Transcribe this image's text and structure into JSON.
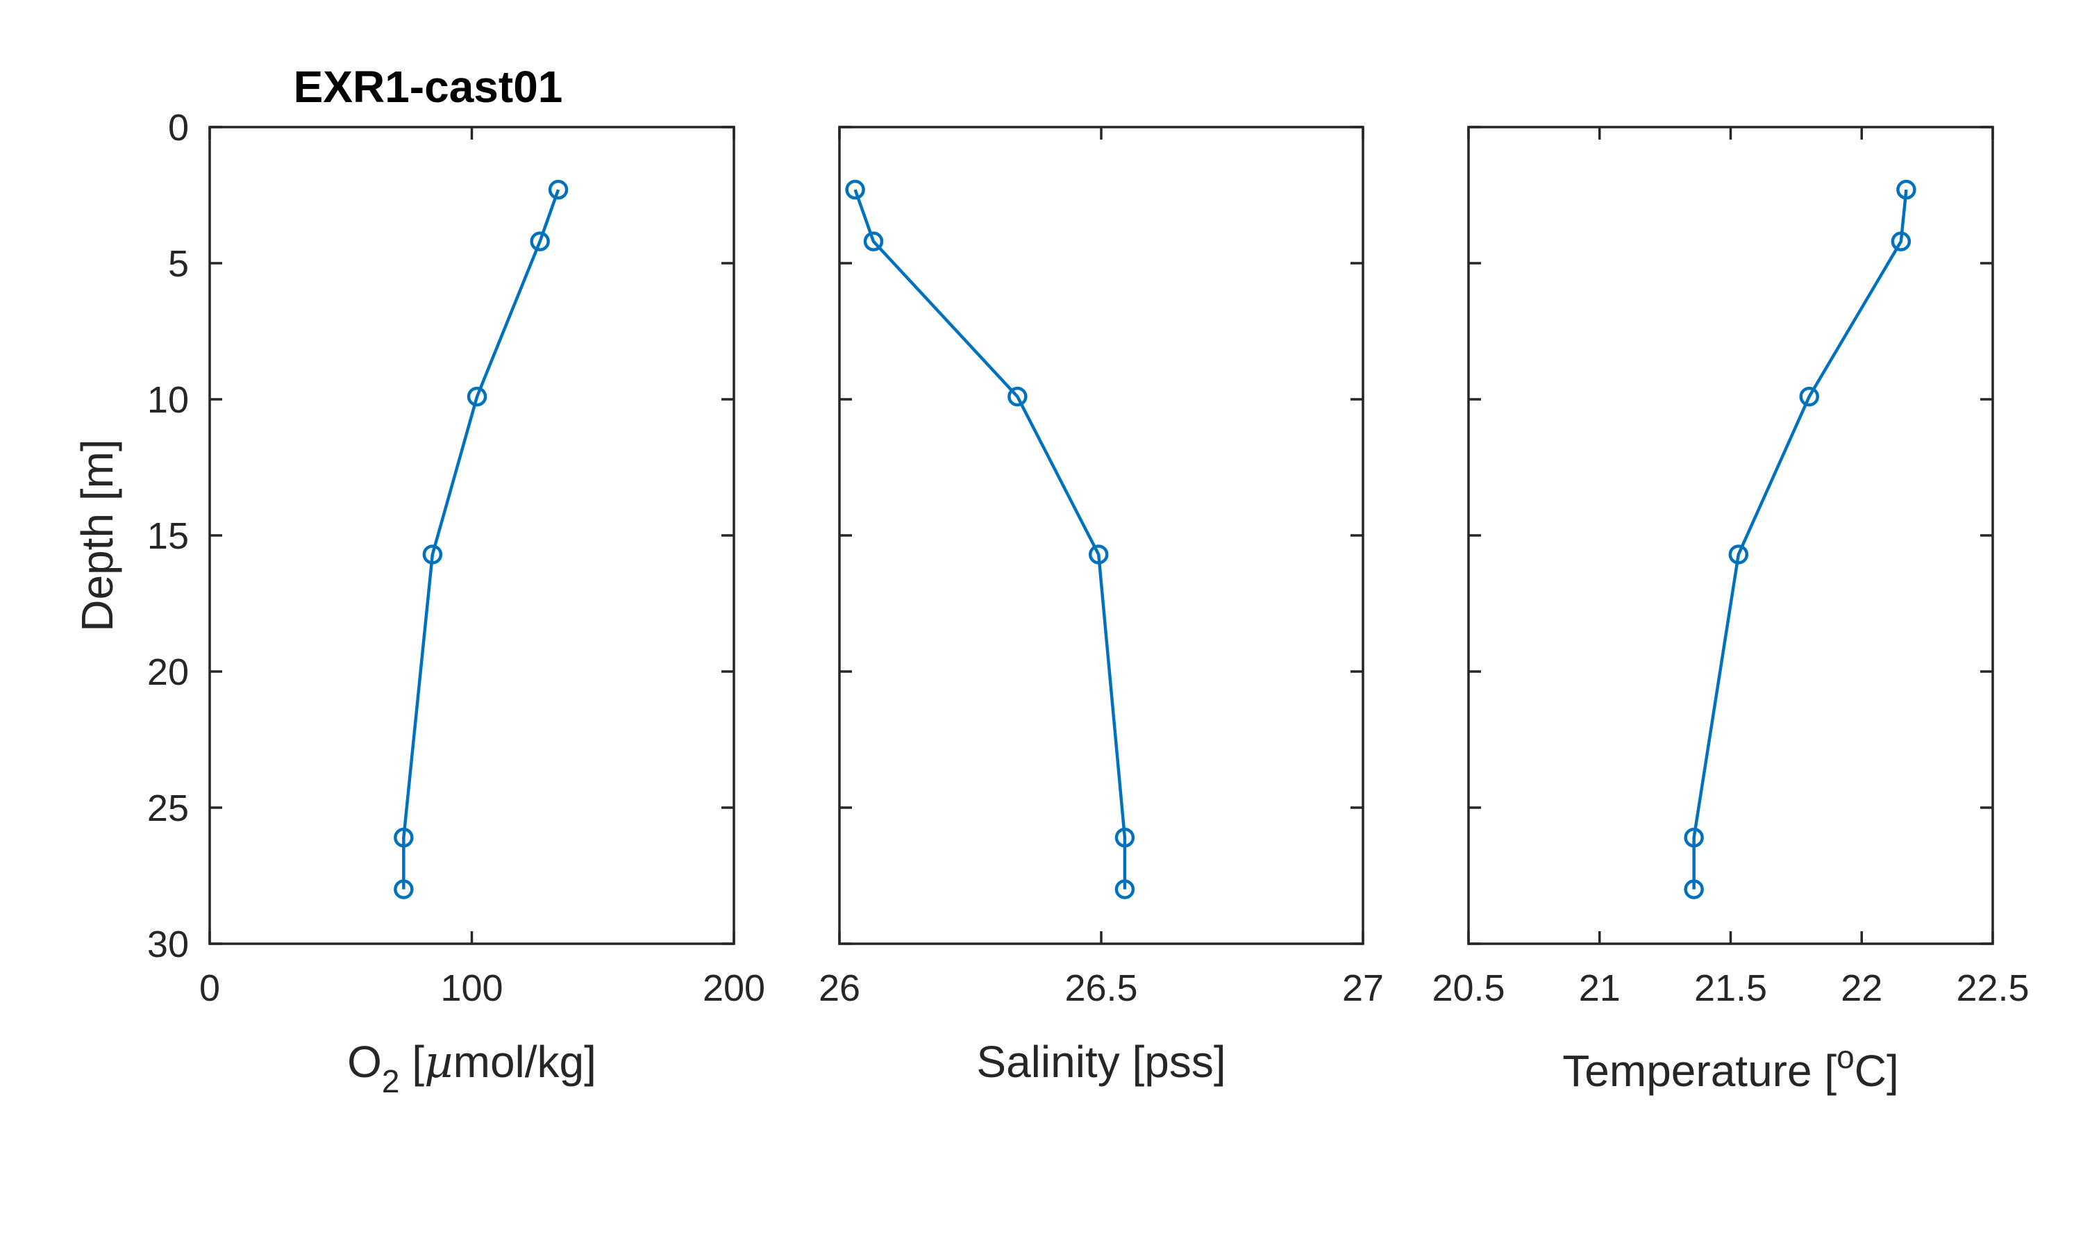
{
  "chart_data": [
    {
      "type": "line",
      "title": "EXR1-cast01",
      "xlabel": "O2 [µmol/kg]",
      "xlabel_parts": {
        "main": "O",
        "sub": "2",
        "rest": " [",
        "mu": "µ",
        "tail": "mol/kg]"
      },
      "ylabel": "Depth [m]",
      "xlim": [
        0,
        200
      ],
      "ylim": [
        0,
        30
      ],
      "y_reversed": true,
      "xticks": [
        0,
        100,
        200
      ],
      "xtick_labels": [
        "0",
        "100",
        "200"
      ],
      "yticks": [
        0,
        5,
        10,
        15,
        20,
        25,
        30
      ],
      "ytick_labels": [
        "0",
        "5",
        "10",
        "15",
        "20",
        "25",
        "30"
      ],
      "color": "#0072BD",
      "marker": "circle",
      "x": [
        133,
        126,
        102,
        85,
        74,
        74
      ],
      "y": [
        2.3,
        4.2,
        9.9,
        15.7,
        26.1,
        28.0
      ]
    },
    {
      "type": "line",
      "xlabel": "Salinity [pss]",
      "xlim": [
        26,
        27
      ],
      "ylim": [
        0,
        30
      ],
      "y_reversed": true,
      "xticks": [
        26,
        26.5,
        27
      ],
      "xtick_labels": [
        "26",
        "26.5",
        "27"
      ],
      "yticks": [
        0,
        5,
        10,
        15,
        20,
        25,
        30
      ],
      "ytick_labels": [],
      "color": "#0072BD",
      "marker": "circle",
      "x": [
        26.03,
        26.065,
        26.34,
        26.495,
        26.545,
        26.545
      ],
      "y": [
        2.3,
        4.2,
        9.9,
        15.7,
        26.1,
        28.0
      ]
    },
    {
      "type": "line",
      "xlabel": "Temperature [oC]",
      "xlabel_parts": {
        "main": "Temperature [",
        "sup": "o",
        "rest": "C]"
      },
      "xlim": [
        20.5,
        22.5
      ],
      "ylim": [
        0,
        30
      ],
      "y_reversed": true,
      "xticks": [
        20.5,
        21,
        21.5,
        22,
        22.5
      ],
      "xtick_labels": [
        "20.5",
        "21",
        "21.5",
        "22",
        "22.5"
      ],
      "yticks": [
        0,
        5,
        10,
        15,
        20,
        25,
        30
      ],
      "ytick_labels": [],
      "color": "#0072BD",
      "marker": "circle",
      "x": [
        22.17,
        22.15,
        21.8,
        21.53,
        21.36,
        21.36
      ],
      "y": [
        2.3,
        4.2,
        9.9,
        15.7,
        26.1,
        28.0
      ]
    }
  ]
}
